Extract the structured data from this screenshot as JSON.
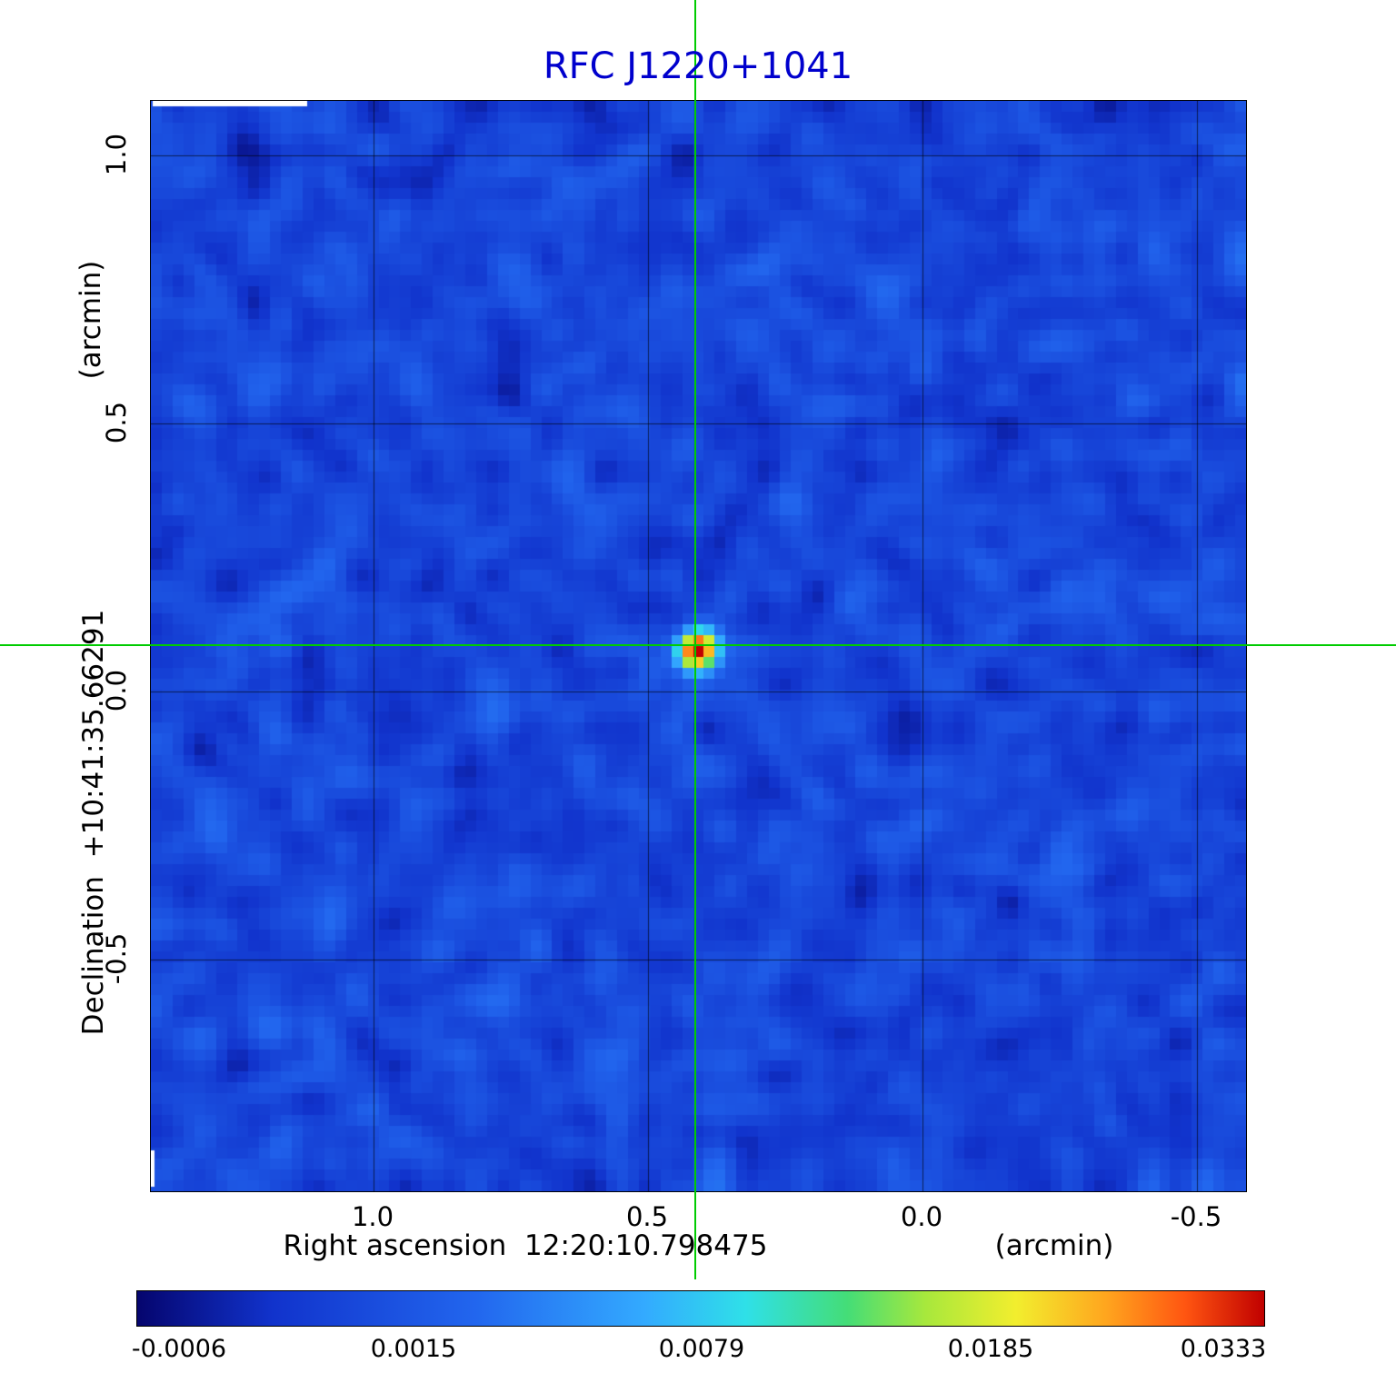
{
  "chart_data": {
    "type": "heatmap",
    "title": "RFC J1220+1041",
    "title_color": "#0000cd",
    "xlabel": "Right ascension  12:20:10.798475",
    "xunit": "(arcmin)",
    "ylabel": "Declination  +10:41:35.66291",
    "yunit": "(arcmin)",
    "x_ticks": [
      "1.0",
      "0.5",
      "0.0",
      "-0.5"
    ],
    "y_ticks": [
      "1.0",
      "0.5",
      "0.0",
      "-0.5"
    ],
    "x_range_arcmin": [
      1.41,
      -0.59
    ],
    "y_range_arcmin": [
      -0.92,
      1.1
    ],
    "grid": true,
    "crosshair_color": "#00cc00",
    "source": {
      "name": "RFC J1220+1041",
      "ra": "12:20:10.798475",
      "dec": "+10:41:35.66291",
      "offset_arcmin": {
        "x": 0.41,
        "y": 0.08
      },
      "peak_value": 0.0333
    },
    "colorbar": {
      "ticks": [
        "-0.0006",
        "0.0015",
        "0.0079",
        "0.0185",
        "0.0333"
      ],
      "stops": [
        {
          "pos": 0.0,
          "color": "#05056e"
        },
        {
          "pos": 0.12,
          "color": "#1133cc"
        },
        {
          "pos": 0.3,
          "color": "#2266ee"
        },
        {
          "pos": 0.45,
          "color": "#33aaff"
        },
        {
          "pos": 0.54,
          "color": "#2fe0e8"
        },
        {
          "pos": 0.63,
          "color": "#44dd77"
        },
        {
          "pos": 0.7,
          "color": "#a8e83c"
        },
        {
          "pos": 0.78,
          "color": "#f2ee2e"
        },
        {
          "pos": 0.86,
          "color": "#ffa51e"
        },
        {
          "pos": 0.93,
          "color": "#ff5511"
        },
        {
          "pos": 1.0,
          "color": "#c00000"
        }
      ]
    }
  }
}
